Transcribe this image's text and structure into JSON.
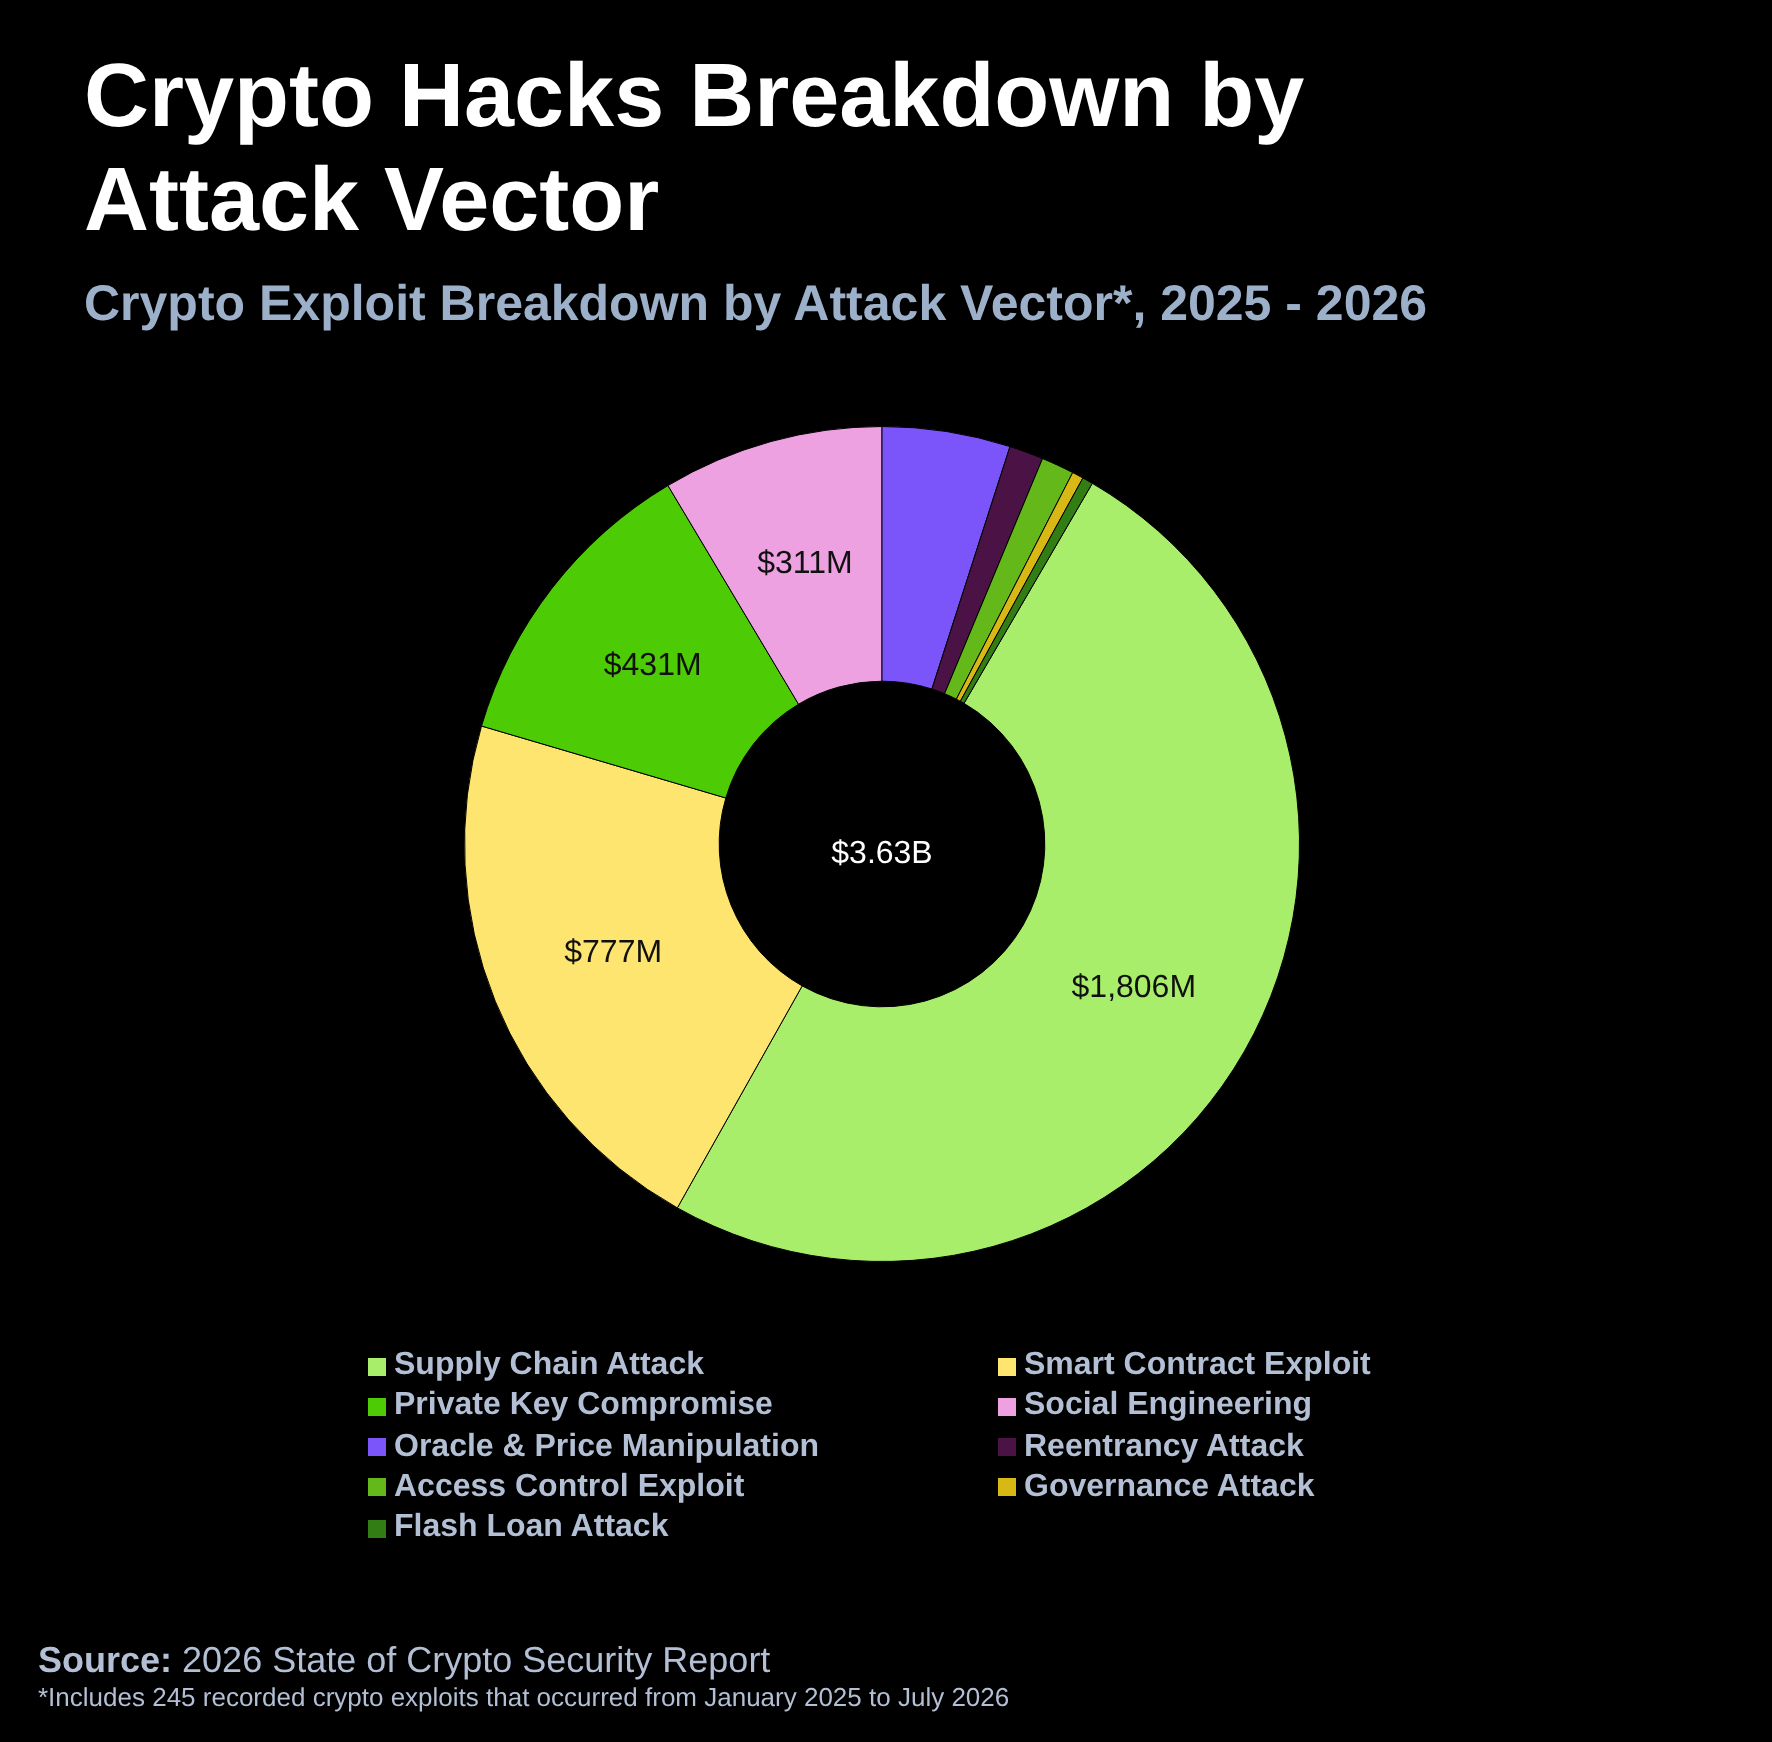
{
  "chart_data": {
    "type": "donut",
    "title": "Crypto Hacks Breakdown by Attack Vector",
    "subtitle": "Crypto Exploit Breakdown by Attack Vector*, 2025 - 2026",
    "categories": [
      "Supply Chain Attack",
      "Smart Contract Exploit",
      "Private Key Compromise",
      "Social Engineering",
      "Oracle & Price Manipulation",
      "Reentrancy Attack",
      "Access Control Exploit",
      "Governance Attack",
      "Flash Loan Attack"
    ],
    "values": [
      1806,
      777,
      431,
      311,
      180,
      48,
      46,
      16,
      15
    ],
    "colors": [
      "#a9ee6b",
      "#fde56f",
      "#4dcc06",
      "#eea1e1",
      "#7c55fa",
      "#4b1246",
      "#65b81a",
      "#d8b814",
      "#327d14"
    ],
    "value_labels": [
      "$1,806M",
      "$777M",
      "$431M",
      "$311M",
      null,
      null,
      null,
      null,
      null
    ],
    "legend": "bottom",
    "annotations": [
      "$3.63B",
      "Source: 2026 State of Crypto Security Report",
      "*Includes 245 recorded crypto exploits that occurred from January 2025 to July 2026"
    ]
  }
}
